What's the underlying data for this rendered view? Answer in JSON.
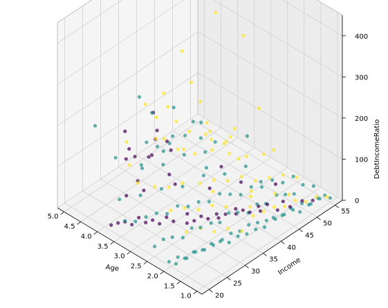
{
  "chart_data": {
    "type": "scatter3d",
    "title": "",
    "axes": {
      "x": {
        "label": "Income",
        "range": [
          18,
          57
        ],
        "ticks": [
          20,
          25,
          30,
          35,
          40,
          45,
          50,
          55
        ]
      },
      "y": {
        "label": "Age",
        "range": [
          0.85,
          5.2
        ],
        "ticks": [
          "1.0",
          "1.5",
          "2.0",
          "2.5",
          "3.0",
          "3.5",
          "4.0",
          "4.5",
          "5.0"
        ]
      },
      "z": {
        "label": "DebtIncomeRatio",
        "range": [
          0,
          450
        ],
        "ticks": [
          0,
          100,
          200,
          300,
          400
        ]
      }
    },
    "grid": true,
    "legend": "none",
    "colors": {
      "cluster_0": "#440154",
      "cluster_1": "#21918c",
      "cluster_2": "#fde725"
    },
    "series": [
      {
        "cluster": 0,
        "points": [
          [
            52,
            1.2,
            12
          ],
          [
            50,
            1.3,
            18
          ],
          [
            48,
            1.45,
            8
          ],
          [
            47,
            1.55,
            22
          ],
          [
            45,
            1.5,
            15
          ],
          [
            44,
            1.7,
            25
          ],
          [
            43,
            1.8,
            10
          ],
          [
            42,
            1.75,
            30
          ],
          [
            41,
            1.9,
            14
          ],
          [
            40,
            2.0,
            20
          ],
          [
            39,
            2.1,
            12
          ],
          [
            38,
            2.0,
            35
          ],
          [
            37,
            2.2,
            18
          ],
          [
            36,
            2.3,
            10
          ],
          [
            35,
            2.25,
            28
          ],
          [
            34,
            2.4,
            15
          ],
          [
            33,
            2.5,
            22
          ],
          [
            32,
            2.6,
            12
          ],
          [
            31,
            2.7,
            30
          ],
          [
            30,
            2.6,
            18
          ],
          [
            29,
            2.9,
            14
          ],
          [
            28,
            3.0,
            25
          ],
          [
            27,
            3.1,
            10
          ],
          [
            26,
            3.2,
            20
          ],
          [
            25,
            3.3,
            15
          ],
          [
            24,
            3.4,
            28
          ],
          [
            23,
            3.5,
            12
          ],
          [
            22,
            3.6,
            20
          ],
          [
            21,
            3.7,
            18
          ],
          [
            20,
            3.8,
            14
          ],
          [
            45,
            2.6,
            30
          ],
          [
            40,
            3.0,
            25
          ],
          [
            35,
            3.5,
            40
          ],
          [
            30,
            3.9,
            35
          ],
          [
            27,
            4.1,
            30
          ],
          [
            50,
            2.1,
            20
          ],
          [
            46,
            3.3,
            28
          ],
          [
            38,
            4.0,
            22
          ],
          [
            32,
            3.3,
            150
          ],
          [
            30,
            3.5,
            200
          ],
          [
            28,
            3.4,
            260
          ],
          [
            25,
            3.8,
            170
          ],
          [
            24,
            3.1,
            190
          ],
          [
            22,
            3.6,
            240
          ],
          [
            26,
            4.0,
            130
          ],
          [
            34,
            4.6,
            60
          ],
          [
            42,
            4.5,
            55
          ],
          [
            20,
            3.0,
            160
          ],
          [
            23,
            2.9,
            210
          ],
          [
            36,
            4.2,
            110
          ]
        ]
      },
      {
        "cluster": 1,
        "points": [
          [
            55,
            1.0,
            10
          ],
          [
            54,
            1.05,
            20
          ],
          [
            53,
            1.1,
            15
          ],
          [
            52,
            1.05,
            25
          ],
          [
            51,
            1.15,
            12
          ],
          [
            50,
            1.1,
            18
          ],
          [
            49,
            1.2,
            22
          ],
          [
            48,
            1.15,
            10
          ],
          [
            47,
            1.25,
            16
          ],
          [
            46,
            1.2,
            28
          ],
          [
            45,
            1.3,
            14
          ],
          [
            44,
            1.25,
            20
          ],
          [
            43,
            1.35,
            12
          ],
          [
            42,
            1.3,
            24
          ],
          [
            41,
            1.4,
            18
          ],
          [
            40,
            1.35,
            10
          ],
          [
            39,
            1.45,
            22
          ],
          [
            38,
            1.4,
            14
          ],
          [
            37,
            1.5,
            26
          ],
          [
            36,
            1.45,
            12
          ],
          [
            35,
            1.55,
            20
          ],
          [
            34,
            1.5,
            16
          ],
          [
            33,
            1.6,
            24
          ],
          [
            32,
            1.55,
            10
          ],
          [
            31,
            1.65,
            18
          ],
          [
            30,
            1.6,
            22
          ],
          [
            29,
            1.7,
            14
          ],
          [
            28,
            1.65,
            26
          ],
          [
            27,
            1.75,
            12
          ],
          [
            26,
            1.7,
            20
          ],
          [
            25,
            1.8,
            16
          ],
          [
            24,
            1.75,
            24
          ],
          [
            23,
            1.85,
            10
          ],
          [
            22,
            1.8,
            18
          ],
          [
            21,
            1.9,
            22
          ],
          [
            20,
            1.85,
            14
          ],
          [
            19,
            1.95,
            20
          ],
          [
            55,
            1.5,
            15
          ],
          [
            53,
            1.6,
            25
          ],
          [
            51,
            1.65,
            12
          ],
          [
            49,
            1.7,
            20
          ],
          [
            47,
            1.75,
            28
          ],
          [
            45,
            1.85,
            14
          ],
          [
            43,
            1.9,
            22
          ],
          [
            41,
            1.95,
            10
          ],
          [
            39,
            2.05,
            18
          ],
          [
            37,
            2.1,
            26
          ],
          [
            35,
            2.15,
            12
          ],
          [
            33,
            2.2,
            20
          ],
          [
            31,
            2.3,
            16
          ],
          [
            29,
            2.35,
            24
          ],
          [
            27,
            2.4,
            10
          ],
          [
            25,
            2.5,
            18
          ],
          [
            23,
            2.55,
            22
          ],
          [
            21,
            2.6,
            14
          ],
          [
            54,
            2.0,
            20
          ],
          [
            52,
            2.1,
            12
          ],
          [
            50,
            2.2,
            25
          ],
          [
            48,
            2.3,
            15
          ],
          [
            46,
            2.4,
            22
          ],
          [
            44,
            2.5,
            10
          ],
          [
            42,
            2.6,
            18
          ],
          [
            40,
            2.7,
            26
          ],
          [
            38,
            2.8,
            14
          ],
          [
            36,
            2.9,
            20
          ],
          [
            34,
            3.0,
            16
          ],
          [
            32,
            3.1,
            24
          ],
          [
            30,
            3.2,
            12
          ],
          [
            28,
            3.3,
            20
          ],
          [
            26,
            3.4,
            18
          ],
          [
            24,
            3.5,
            14
          ],
          [
            22,
            3.6,
            22
          ],
          [
            50,
            3.0,
            20
          ],
          [
            46,
            3.2,
            15
          ],
          [
            42,
            3.4,
            25
          ],
          [
            38,
            3.6,
            12
          ],
          [
            34,
            3.8,
            20
          ],
          [
            30,
            4.0,
            18
          ],
          [
            26,
            4.2,
            22
          ],
          [
            48,
            4.0,
            18
          ],
          [
            44,
            4.2,
            25
          ],
          [
            40,
            4.4,
            15
          ],
          [
            36,
            4.6,
            20
          ],
          [
            55,
            3.5,
            40
          ],
          [
            52,
            4.8,
            30
          ],
          [
            40,
            4.9,
            45
          ],
          [
            33,
            4.3,
            60
          ],
          [
            30,
            3.0,
            280
          ],
          [
            29,
            3.2,
            170
          ],
          [
            31,
            3.6,
            150
          ],
          [
            27,
            2.8,
            220
          ],
          [
            33,
            2.5,
            250
          ],
          [
            26,
            3.6,
            300
          ],
          [
            35,
            4.2,
            180
          ],
          [
            38,
            3.9,
            120
          ],
          [
            24,
            4.1,
            140
          ],
          [
            36,
            2.4,
            190
          ],
          [
            44,
            3.7,
            90
          ],
          [
            22,
            4.5,
            210
          ],
          [
            40,
            3.1,
            70
          ],
          [
            47,
            4.5,
            40
          ],
          [
            45,
            2.0,
            60
          ]
        ]
      },
      {
        "cluster": 2,
        "points": [
          [
            55,
            1.1,
            8
          ],
          [
            53,
            1.2,
            15
          ],
          [
            51,
            1.3,
            10
          ],
          [
            49,
            1.4,
            20
          ],
          [
            47,
            1.5,
            12
          ],
          [
            45,
            1.6,
            18
          ],
          [
            43,
            1.7,
            14
          ],
          [
            41,
            1.8,
            10
          ],
          [
            55,
            2.0,
            12
          ],
          [
            53,
            2.2,
            20
          ],
          [
            51,
            2.4,
            15
          ],
          [
            49,
            2.6,
            10
          ],
          [
            47,
            2.8,
            22
          ],
          [
            45,
            3.0,
            14
          ],
          [
            43,
            3.2,
            18
          ],
          [
            41,
            3.4,
            12
          ],
          [
            55,
            3.0,
            20
          ],
          [
            53,
            3.3,
            12
          ],
          [
            51,
            3.6,
            16
          ],
          [
            49,
            3.9,
            22
          ],
          [
            47,
            4.2,
            10
          ],
          [
            45,
            4.5,
            18
          ],
          [
            55,
            4.0,
            14
          ],
          [
            53,
            4.4,
            20
          ],
          [
            51,
            4.8,
            12
          ],
          [
            39,
            2.4,
            15
          ],
          [
            37,
            2.6,
            20
          ],
          [
            35,
            2.8,
            12
          ],
          [
            33,
            3.0,
            18
          ],
          [
            31,
            3.2,
            14
          ],
          [
            40,
            2.9,
            22
          ],
          [
            42,
            2.0,
            16
          ],
          [
            44,
            2.2,
            20
          ],
          [
            46,
            2.4,
            12
          ],
          [
            48,
            1.9,
            18
          ],
          [
            50,
            1.7,
            14
          ],
          [
            38,
            3.6,
            20
          ],
          [
            36,
            3.8,
            12
          ],
          [
            34,
            4.0,
            16
          ],
          [
            32,
            4.3,
            22
          ],
          [
            30,
            2.2,
            25
          ],
          [
            32,
            2.0,
            15
          ],
          [
            34,
            1.8,
            20
          ],
          [
            36,
            1.6,
            12
          ],
          [
            28,
            2.4,
            18
          ],
          [
            52,
            3.8,
            30
          ],
          [
            54,
            4.6,
            25
          ],
          [
            50,
            4.2,
            40
          ],
          [
            44,
            4.8,
            35
          ],
          [
            42,
            4.0,
            60
          ],
          [
            46,
            3.6,
            80
          ],
          [
            40,
            4.6,
            120
          ],
          [
            48,
            3.0,
            50
          ],
          [
            38,
            4.4,
            90
          ],
          [
            55,
            2.7,
            45
          ],
          [
            53,
            4.9,
            460
          ],
          [
            50,
            3.9,
            350
          ],
          [
            54,
            3.5,
            290
          ],
          [
            45,
            4.1,
            200
          ],
          [
            48,
            4.7,
            230
          ],
          [
            42,
            3.5,
            200
          ],
          [
            30,
            3.3,
            300
          ],
          [
            28,
            4.2,
            150
          ],
          [
            26,
            3.9,
            120
          ],
          [
            36,
            4.5,
            180
          ],
          [
            44,
            3.0,
            110
          ],
          [
            33,
            3.5,
            240
          ],
          [
            39,
            3.9,
            150
          ],
          [
            50,
            2.6,
            180
          ],
          [
            46,
            2.9,
            140
          ]
        ]
      }
    ]
  }
}
